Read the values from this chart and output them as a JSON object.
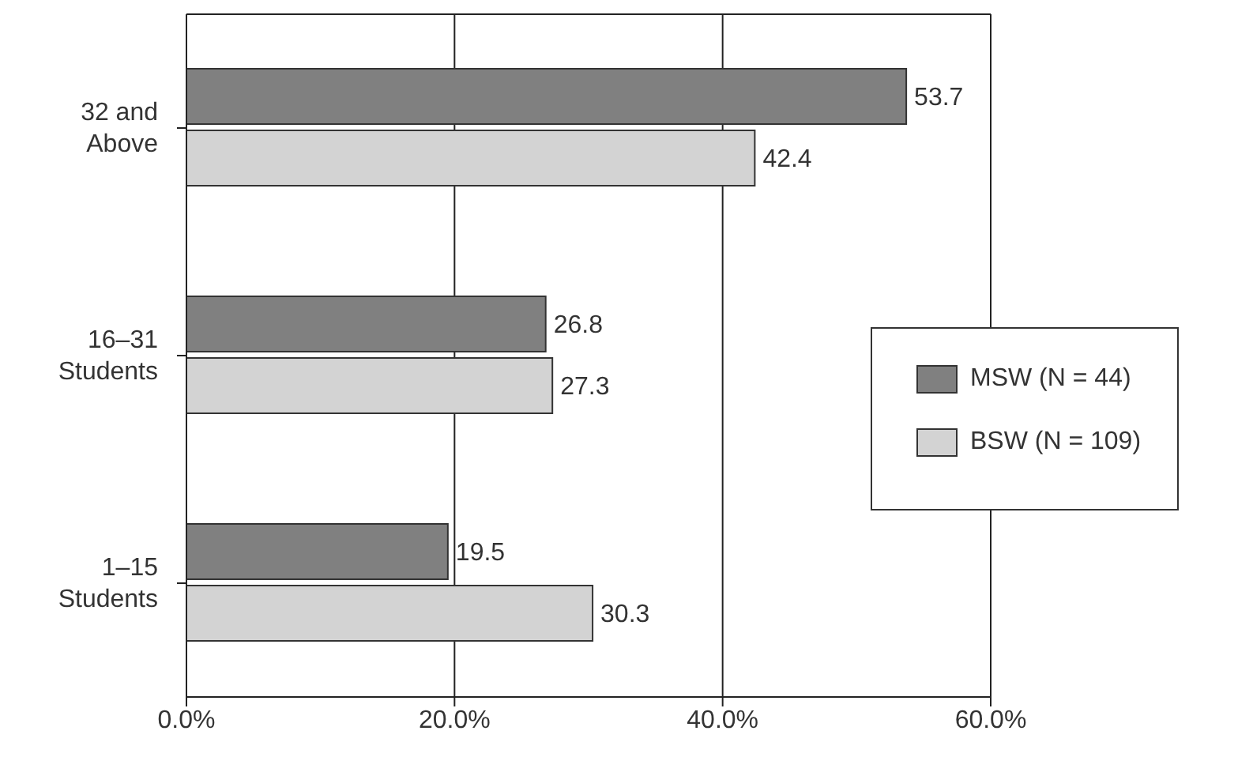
{
  "chart_data": {
    "type": "bar",
    "orientation": "horizontal",
    "categories": [
      "32 and Above",
      "16–31 Students",
      "1–15 Students"
    ],
    "series": [
      {
        "name": "MSW (N = 44)",
        "color": "#808080",
        "values": [
          53.7,
          26.8,
          19.5
        ]
      },
      {
        "name": "BSW (N = 109)",
        "color": "#d3d3d3",
        "values": [
          42.4,
          27.3,
          30.3
        ]
      }
    ],
    "xlim": [
      0,
      60
    ],
    "xticks": [
      {
        "value": 0,
        "label": "0.0%"
      },
      {
        "value": 20,
        "label": "20.0%"
      },
      {
        "value": 40,
        "label": "40.0%"
      },
      {
        "value": 60,
        "label": "60.0%"
      }
    ],
    "grid": "x",
    "legend": "right",
    "data_labels": true
  }
}
